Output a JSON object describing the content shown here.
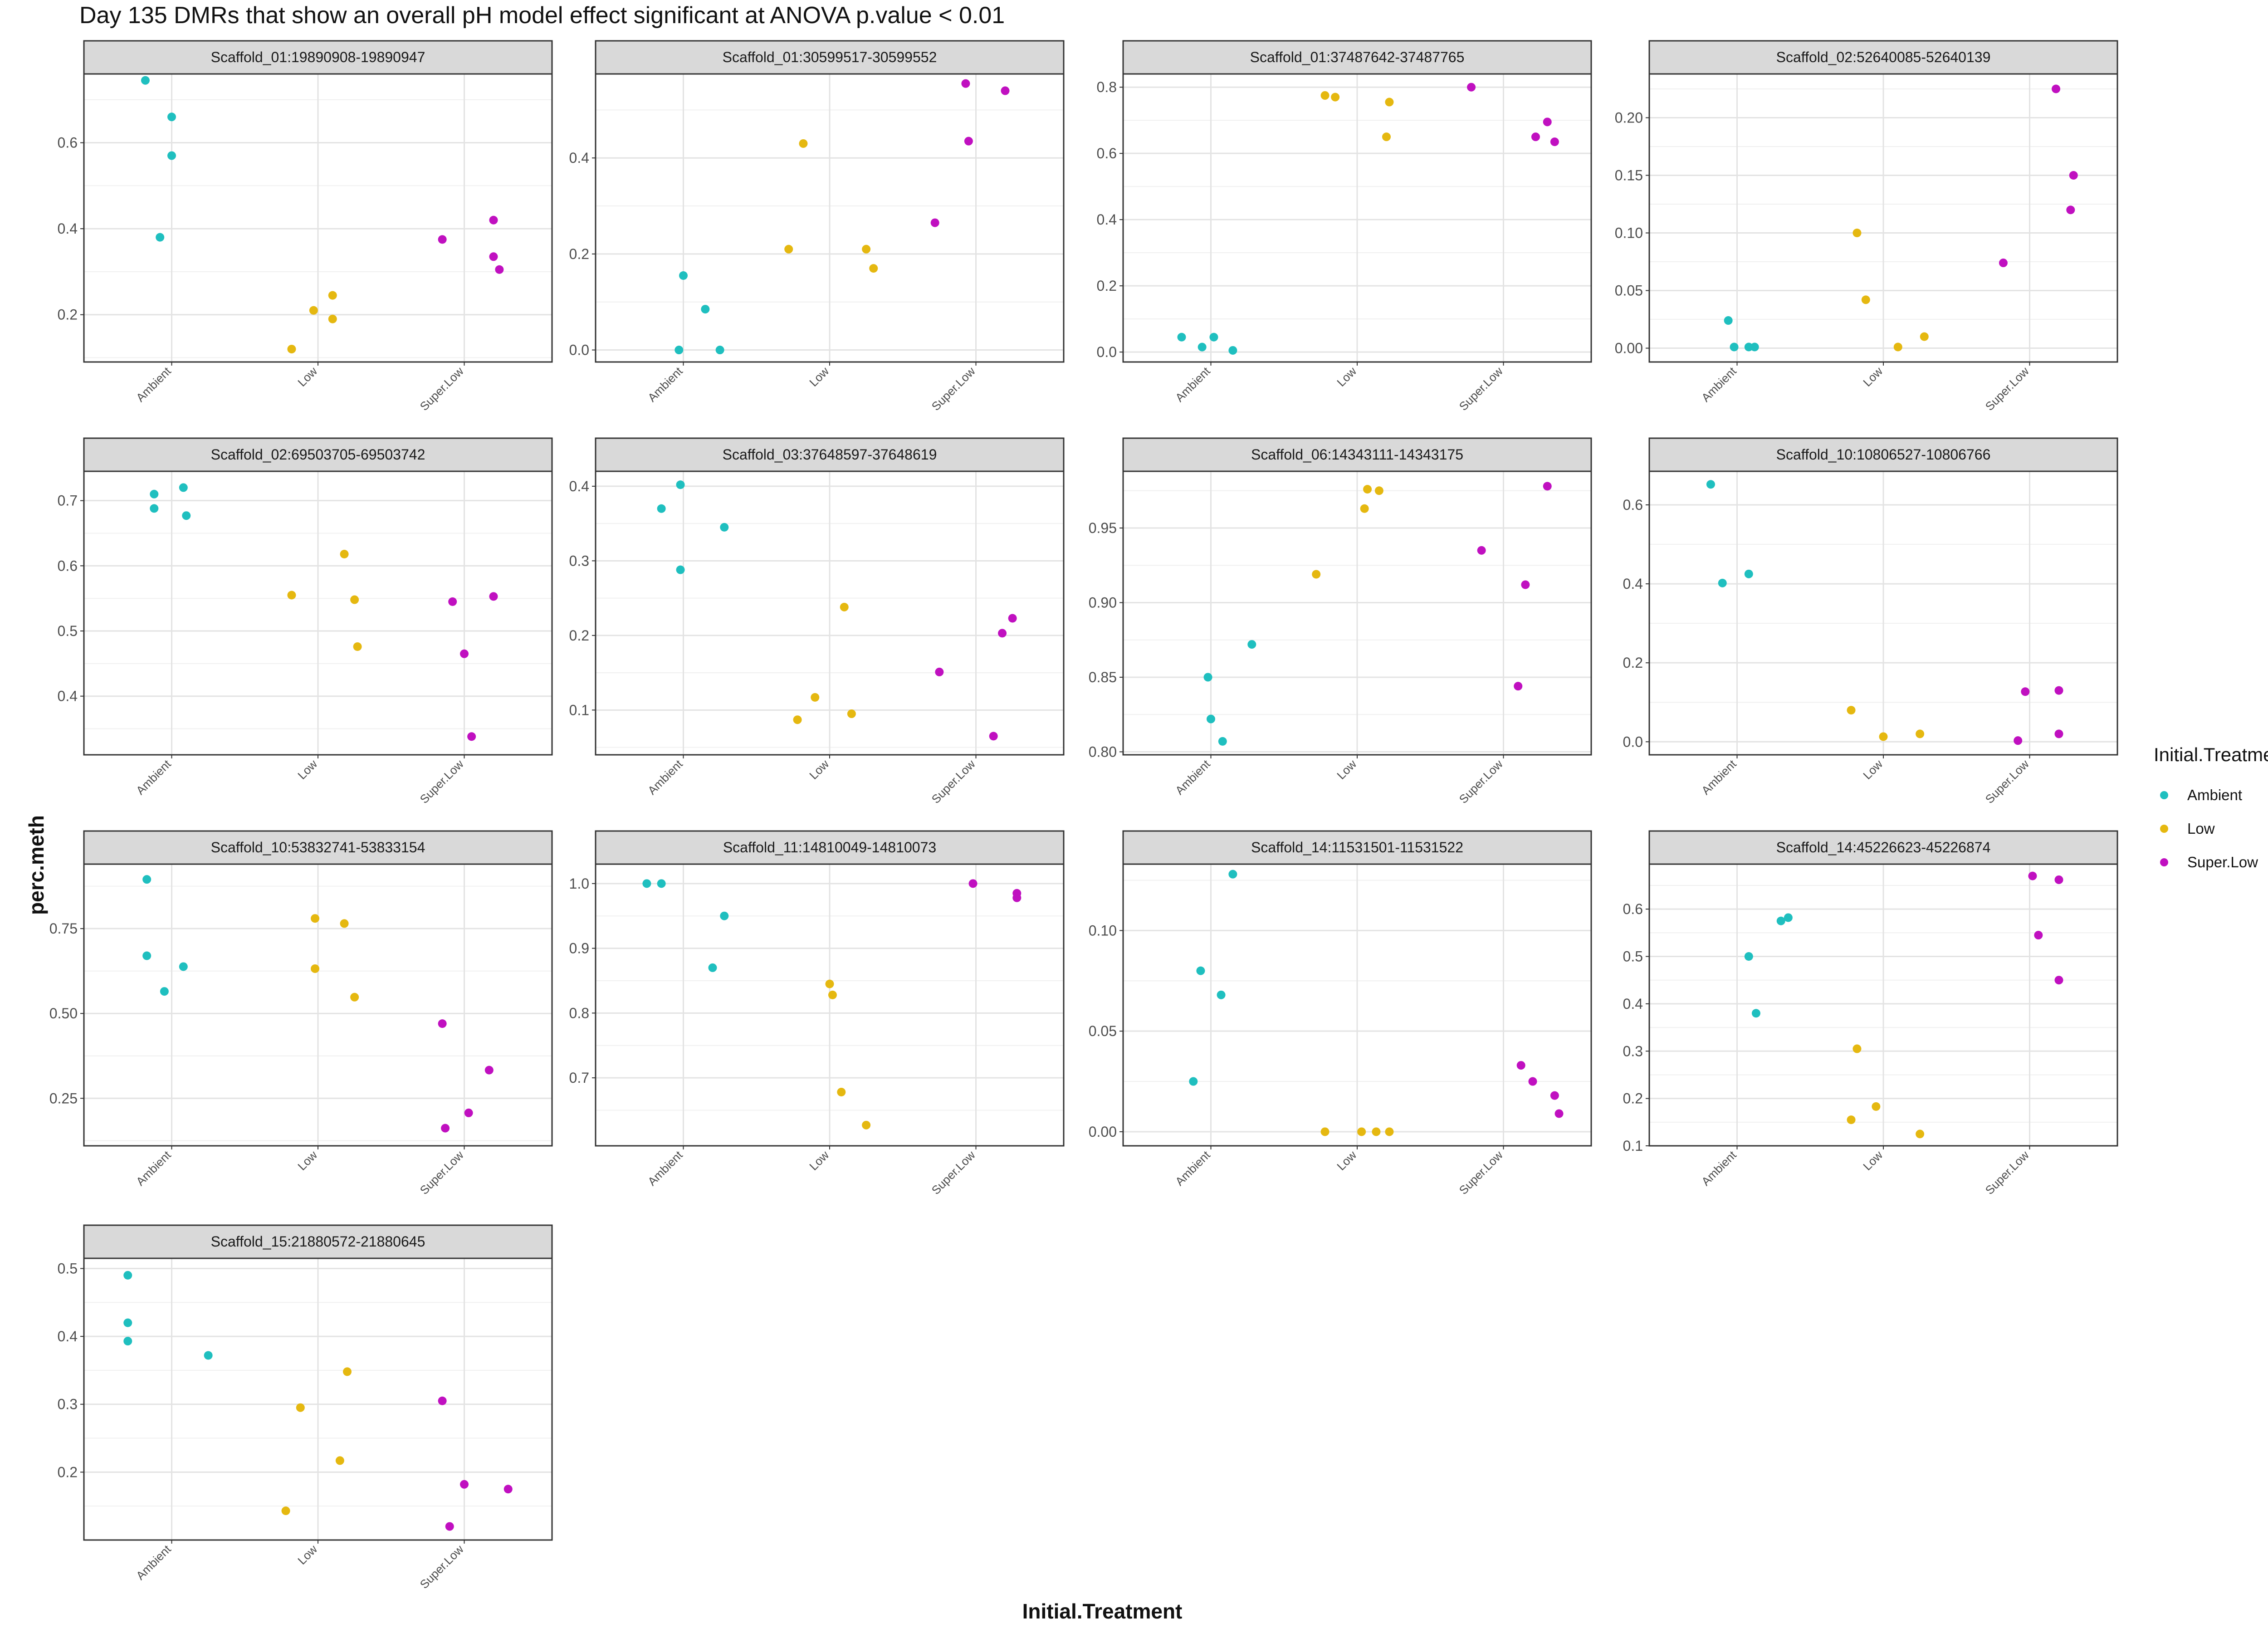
{
  "title": "Day 135 DMRs that show an overall pH model effect significant at ANOVA p.value < 0.01",
  "xlabel": "Initial.Treatment",
  "ylabel": "perc.meth",
  "legend": {
    "title": "Initial.Treatment",
    "items": [
      {
        "label": "Ambient",
        "color": "#1fbfbf"
      },
      {
        "label": "Low",
        "color": "#e5b810"
      },
      {
        "label": "Super.Low",
        "color": "#c010c0"
      }
    ]
  },
  "chart_data": {
    "type": "scatter",
    "colors": {
      "Ambient": "#1fbfbf",
      "Low": "#e5b810",
      "Super.Low": "#c010c0"
    },
    "panels": [
      {
        "strip": "Scaffold_01:19890908-19890947",
        "xticks": [
          "Ambient",
          "Low",
          "Super.Low"
        ],
        "ylim": [
          0.09,
          0.76
        ],
        "yticks": [
          0.2,
          0.4,
          0.6
        ],
        "ytick_labels": [
          "0.2",
          "0.4",
          "0.6"
        ],
        "points": [
          [
            0.82,
            0.745,
            "Ambient"
          ],
          [
            0.92,
            0.38,
            "Ambient"
          ],
          [
            1.0,
            0.57,
            "Ambient"
          ],
          [
            1.0,
            0.66,
            "Ambient"
          ],
          [
            1.82,
            0.12,
            "Low"
          ],
          [
            1.97,
            0.21,
            "Low"
          ],
          [
            2.1,
            0.245,
            "Low"
          ],
          [
            2.1,
            0.19,
            "Low"
          ],
          [
            2.85,
            0.375,
            "Super.Low"
          ],
          [
            3.2,
            0.42,
            "Super.Low"
          ],
          [
            3.2,
            0.335,
            "Super.Low"
          ],
          [
            3.24,
            0.305,
            "Super.Low"
          ]
        ]
      },
      {
        "strip": "Scaffold_01:30599517-30599552",
        "xticks": [
          "Ambient",
          "Low",
          "Super.Low"
        ],
        "ylim": [
          -0.025,
          0.575
        ],
        "yticks": [
          0.0,
          0.2,
          0.4
        ],
        "ytick_labels": [
          "0.0",
          "0.2",
          "0.4"
        ],
        "points": [
          [
            0.97,
            0.0,
            "Ambient"
          ],
          [
            1.0,
            0.155,
            "Ambient"
          ],
          [
            1.15,
            0.085,
            "Ambient"
          ],
          [
            1.25,
            0.0,
            "Ambient"
          ],
          [
            1.72,
            0.21,
            "Low"
          ],
          [
            1.82,
            0.43,
            "Low"
          ],
          [
            2.25,
            0.21,
            "Low"
          ],
          [
            2.3,
            0.17,
            "Low"
          ],
          [
            2.72,
            0.265,
            "Super.Low"
          ],
          [
            2.93,
            0.555,
            "Super.Low"
          ],
          [
            2.95,
            0.435,
            "Super.Low"
          ],
          [
            3.2,
            0.54,
            "Super.Low"
          ]
        ]
      },
      {
        "strip": "Scaffold_01:37487642-37487765",
        "xticks": [
          "Ambient",
          "Low",
          "Super.Low"
        ],
        "ylim": [
          -0.03,
          0.84
        ],
        "yticks": [
          0.0,
          0.2,
          0.4,
          0.6,
          0.8
        ],
        "ytick_labels": [
          "0.0",
          "0.2",
          "0.4",
          "0.6",
          "0.8"
        ],
        "points": [
          [
            0.8,
            0.045,
            "Ambient"
          ],
          [
            0.94,
            0.015,
            "Ambient"
          ],
          [
            1.02,
            0.045,
            "Ambient"
          ],
          [
            1.15,
            0.005,
            "Ambient"
          ],
          [
            1.78,
            0.775,
            "Low"
          ],
          [
            1.85,
            0.77,
            "Low"
          ],
          [
            2.2,
            0.65,
            "Low"
          ],
          [
            2.22,
            0.755,
            "Low"
          ],
          [
            2.78,
            0.8,
            "Super.Low"
          ],
          [
            3.22,
            0.65,
            "Super.Low"
          ],
          [
            3.3,
            0.695,
            "Super.Low"
          ],
          [
            3.35,
            0.635,
            "Super.Low"
          ]
        ]
      },
      {
        "strip": "Scaffold_02:52640085-52640139",
        "xticks": [
          "Ambient",
          "Low",
          "Super.Low"
        ],
        "ylim": [
          -0.012,
          0.238
        ],
        "yticks": [
          0.0,
          0.05,
          0.1,
          0.15,
          0.2
        ],
        "ytick_labels": [
          "0.00",
          "0.05",
          "0.10",
          "0.15",
          "0.20"
        ],
        "points": [
          [
            0.94,
            0.024,
            "Ambient"
          ],
          [
            0.98,
            0.001,
            "Ambient"
          ],
          [
            1.08,
            0.001,
            "Ambient"
          ],
          [
            1.12,
            0.001,
            "Ambient"
          ],
          [
            1.82,
            0.1,
            "Low"
          ],
          [
            1.88,
            0.042,
            "Low"
          ],
          [
            2.1,
            0.001,
            "Low"
          ],
          [
            2.28,
            0.01,
            "Low"
          ],
          [
            2.82,
            0.074,
            "Super.Low"
          ],
          [
            3.18,
            0.225,
            "Super.Low"
          ],
          [
            3.28,
            0.12,
            "Super.Low"
          ],
          [
            3.3,
            0.15,
            "Super.Low"
          ]
        ]
      },
      {
        "strip": "Scaffold_02:69503705-69503742",
        "xticks": [
          "Ambient",
          "Low",
          "Super.Low"
        ],
        "ylim": [
          0.31,
          0.745
        ],
        "yticks": [
          0.4,
          0.5,
          0.6,
          0.7
        ],
        "ytick_labels": [
          "0.4",
          "0.5",
          "0.6",
          "0.7"
        ],
        "points": [
          [
            0.88,
            0.71,
            "Ambient"
          ],
          [
            0.88,
            0.688,
            "Ambient"
          ],
          [
            1.08,
            0.72,
            "Ambient"
          ],
          [
            1.1,
            0.677,
            "Ambient"
          ],
          [
            1.82,
            0.555,
            "Low"
          ],
          [
            2.18,
            0.618,
            "Low"
          ],
          [
            2.25,
            0.548,
            "Low"
          ],
          [
            2.27,
            0.476,
            "Low"
          ],
          [
            2.92,
            0.545,
            "Super.Low"
          ],
          [
            3.0,
            0.465,
            "Super.Low"
          ],
          [
            3.05,
            0.338,
            "Super.Low"
          ],
          [
            3.2,
            0.553,
            "Super.Low"
          ]
        ]
      },
      {
        "strip": "Scaffold_03:37648597-37648619",
        "xticks": [
          "Ambient",
          "Low",
          "Super.Low"
        ],
        "ylim": [
          0.04,
          0.42
        ],
        "yticks": [
          0.1,
          0.2,
          0.3,
          0.4
        ],
        "ytick_labels": [
          "0.1",
          "0.2",
          "0.3",
          "0.4"
        ],
        "points": [
          [
            0.85,
            0.37,
            "Ambient"
          ],
          [
            0.98,
            0.402,
            "Ambient"
          ],
          [
            0.98,
            0.288,
            "Ambient"
          ],
          [
            1.28,
            0.345,
            "Ambient"
          ],
          [
            1.78,
            0.087,
            "Low"
          ],
          [
            1.9,
            0.117,
            "Low"
          ],
          [
            2.1,
            0.238,
            "Low"
          ],
          [
            2.15,
            0.095,
            "Low"
          ],
          [
            2.75,
            0.151,
            "Super.Low"
          ],
          [
            3.12,
            0.065,
            "Super.Low"
          ],
          [
            3.18,
            0.203,
            "Super.Low"
          ],
          [
            3.25,
            0.223,
            "Super.Low"
          ]
        ]
      },
      {
        "strip": "Scaffold_06:14343111-14343175",
        "xticks": [
          "Ambient",
          "Low",
          "Super.Low"
        ],
        "ylim": [
          0.798,
          0.988
        ],
        "yticks": [
          0.8,
          0.85,
          0.9,
          0.95
        ],
        "ytick_labels": [
          "0.80",
          "0.85",
          "0.90",
          "0.95"
        ],
        "points": [
          [
            0.98,
            0.85,
            "Ambient"
          ],
          [
            1.0,
            0.822,
            "Ambient"
          ],
          [
            1.08,
            0.807,
            "Ambient"
          ],
          [
            1.28,
            0.872,
            "Ambient"
          ],
          [
            1.72,
            0.919,
            "Low"
          ],
          [
            2.05,
            0.963,
            "Low"
          ],
          [
            2.07,
            0.976,
            "Low"
          ],
          [
            2.15,
            0.975,
            "Low"
          ],
          [
            2.85,
            0.935,
            "Super.Low"
          ],
          [
            3.1,
            0.844,
            "Super.Low"
          ],
          [
            3.15,
            0.912,
            "Super.Low"
          ],
          [
            3.3,
            0.978,
            "Super.Low"
          ]
        ]
      },
      {
        "strip": "Scaffold_10:10806527-10806766",
        "xticks": [
          "Ambient",
          "Low",
          "Super.Low"
        ],
        "ylim": [
          -0.033,
          0.685
        ],
        "yticks": [
          0.0,
          0.2,
          0.4,
          0.6
        ],
        "ytick_labels": [
          "0.0",
          "0.2",
          "0.4",
          "0.6"
        ],
        "points": [
          [
            0.82,
            0.652,
            "Ambient"
          ],
          [
            0.9,
            0.402,
            "Ambient"
          ],
          [
            1.08,
            0.425,
            "Ambient"
          ],
          [
            1.78,
            0.08,
            "Low"
          ],
          [
            2.0,
            0.013,
            "Low"
          ],
          [
            2.25,
            0.02,
            "Low"
          ],
          [
            2.92,
            0.003,
            "Super.Low"
          ],
          [
            2.97,
            0.127,
            "Super.Low"
          ],
          [
            3.2,
            0.13,
            "Super.Low"
          ],
          [
            3.2,
            0.02,
            "Super.Low"
          ]
        ]
      },
      {
        "strip": "Scaffold_10:53832741-53833154",
        "xticks": [
          "Ambient",
          "Low",
          "Super.Low"
        ],
        "ylim": [
          0.11,
          0.94
        ],
        "yticks": [
          0.25,
          0.5,
          0.75
        ],
        "ytick_labels": [
          "0.25",
          "0.50",
          "0.75"
        ],
        "points": [
          [
            0.83,
            0.895,
            "Ambient"
          ],
          [
            0.83,
            0.67,
            "Ambient"
          ],
          [
            0.95,
            0.565,
            "Ambient"
          ],
          [
            1.08,
            0.638,
            "Ambient"
          ],
          [
            1.98,
            0.78,
            "Low"
          ],
          [
            1.98,
            0.632,
            "Low"
          ],
          [
            2.18,
            0.765,
            "Low"
          ],
          [
            2.25,
            0.548,
            "Low"
          ],
          [
            2.85,
            0.47,
            "Super.Low"
          ],
          [
            2.87,
            0.162,
            "Super.Low"
          ],
          [
            3.03,
            0.207,
            "Super.Low"
          ],
          [
            3.17,
            0.333,
            "Super.Low"
          ]
        ]
      },
      {
        "strip": "Scaffold_11:14810049-14810073",
        "xticks": [
          "Ambient",
          "Low",
          "Super.Low"
        ],
        "ylim": [
          0.595,
          1.03
        ],
        "yticks": [
          0.7,
          0.8,
          0.9,
          1.0
        ],
        "ytick_labels": [
          "0.7",
          "0.8",
          "0.9",
          "1.0"
        ],
        "points": [
          [
            0.75,
            1.0,
            "Ambient"
          ],
          [
            0.85,
            1.0,
            "Ambient"
          ],
          [
            1.2,
            0.87,
            "Ambient"
          ],
          [
            1.28,
            0.95,
            "Ambient"
          ],
          [
            2.0,
            0.845,
            "Low"
          ],
          [
            2.02,
            0.828,
            "Low"
          ],
          [
            2.08,
            0.678,
            "Low"
          ],
          [
            2.25,
            0.627,
            "Low"
          ],
          [
            2.98,
            1.0,
            "Super.Low"
          ],
          [
            3.28,
            0.985,
            "Super.Low"
          ],
          [
            3.28,
            0.978,
            "Super.Low"
          ]
        ]
      },
      {
        "strip": "Scaffold_14:11531501-11531522",
        "xticks": [
          "Ambient",
          "Low",
          "Super.Low"
        ],
        "ylim": [
          -0.007,
          0.133
        ],
        "yticks": [
          0.0,
          0.05,
          0.1
        ],
        "ytick_labels": [
          "0.00",
          "0.05",
          "0.10"
        ],
        "points": [
          [
            0.88,
            0.025,
            "Ambient"
          ],
          [
            0.93,
            0.08,
            "Ambient"
          ],
          [
            1.07,
            0.068,
            "Ambient"
          ],
          [
            1.15,
            0.128,
            "Ambient"
          ],
          [
            1.78,
            0.0,
            "Low"
          ],
          [
            2.03,
            0.0,
            "Low"
          ],
          [
            2.13,
            0.0,
            "Low"
          ],
          [
            2.22,
            0.0,
            "Low"
          ],
          [
            3.12,
            0.033,
            "Super.Low"
          ],
          [
            3.2,
            0.025,
            "Super.Low"
          ],
          [
            3.35,
            0.018,
            "Super.Low"
          ],
          [
            3.38,
            0.009,
            "Super.Low"
          ]
        ]
      },
      {
        "strip": "Scaffold_14:45226623-45226874",
        "xticks": [
          "Ambient",
          "Low",
          "Super.Low"
        ],
        "ylim": [
          0.1,
          0.695
        ],
        "yticks": [
          0.1,
          0.2,
          0.3,
          0.4,
          0.5,
          0.6
        ],
        "ytick_labels": [
          "0.1",
          "0.2",
          "0.3",
          "0.4",
          "0.5",
          "0.6"
        ],
        "points": [
          [
            1.08,
            0.5,
            "Ambient"
          ],
          [
            1.13,
            0.38,
            "Ambient"
          ],
          [
            1.3,
            0.575,
            "Ambient"
          ],
          [
            1.35,
            0.582,
            "Ambient"
          ],
          [
            1.78,
            0.155,
            "Low"
          ],
          [
            1.82,
            0.305,
            "Low"
          ],
          [
            1.95,
            0.183,
            "Low"
          ],
          [
            2.25,
            0.125,
            "Low"
          ],
          [
            3.02,
            0.67,
            "Super.Low"
          ],
          [
            3.06,
            0.545,
            "Super.Low"
          ],
          [
            3.2,
            0.662,
            "Super.Low"
          ],
          [
            3.2,
            0.45,
            "Super.Low"
          ]
        ]
      },
      {
        "strip": "Scaffold_15:21880572-21880645",
        "xticks": [
          "Ambient",
          "Low",
          "Super.Low"
        ],
        "ylim": [
          0.1,
          0.515
        ],
        "yticks": [
          0.2,
          0.3,
          0.4,
          0.5
        ],
        "ytick_labels": [
          "0.2",
          "0.3",
          "0.4",
          "0.5"
        ],
        "points": [
          [
            0.7,
            0.49,
            "Ambient"
          ],
          [
            0.7,
            0.42,
            "Ambient"
          ],
          [
            0.7,
            0.393,
            "Ambient"
          ],
          [
            1.25,
            0.372,
            "Ambient"
          ],
          [
            1.78,
            0.143,
            "Low"
          ],
          [
            1.88,
            0.295,
            "Low"
          ],
          [
            2.15,
            0.217,
            "Low"
          ],
          [
            2.2,
            0.348,
            "Low"
          ],
          [
            2.85,
            0.305,
            "Super.Low"
          ],
          [
            2.9,
            0.12,
            "Super.Low"
          ],
          [
            3.0,
            0.182,
            "Super.Low"
          ],
          [
            3.3,
            0.175,
            "Super.Low"
          ]
        ]
      }
    ]
  }
}
